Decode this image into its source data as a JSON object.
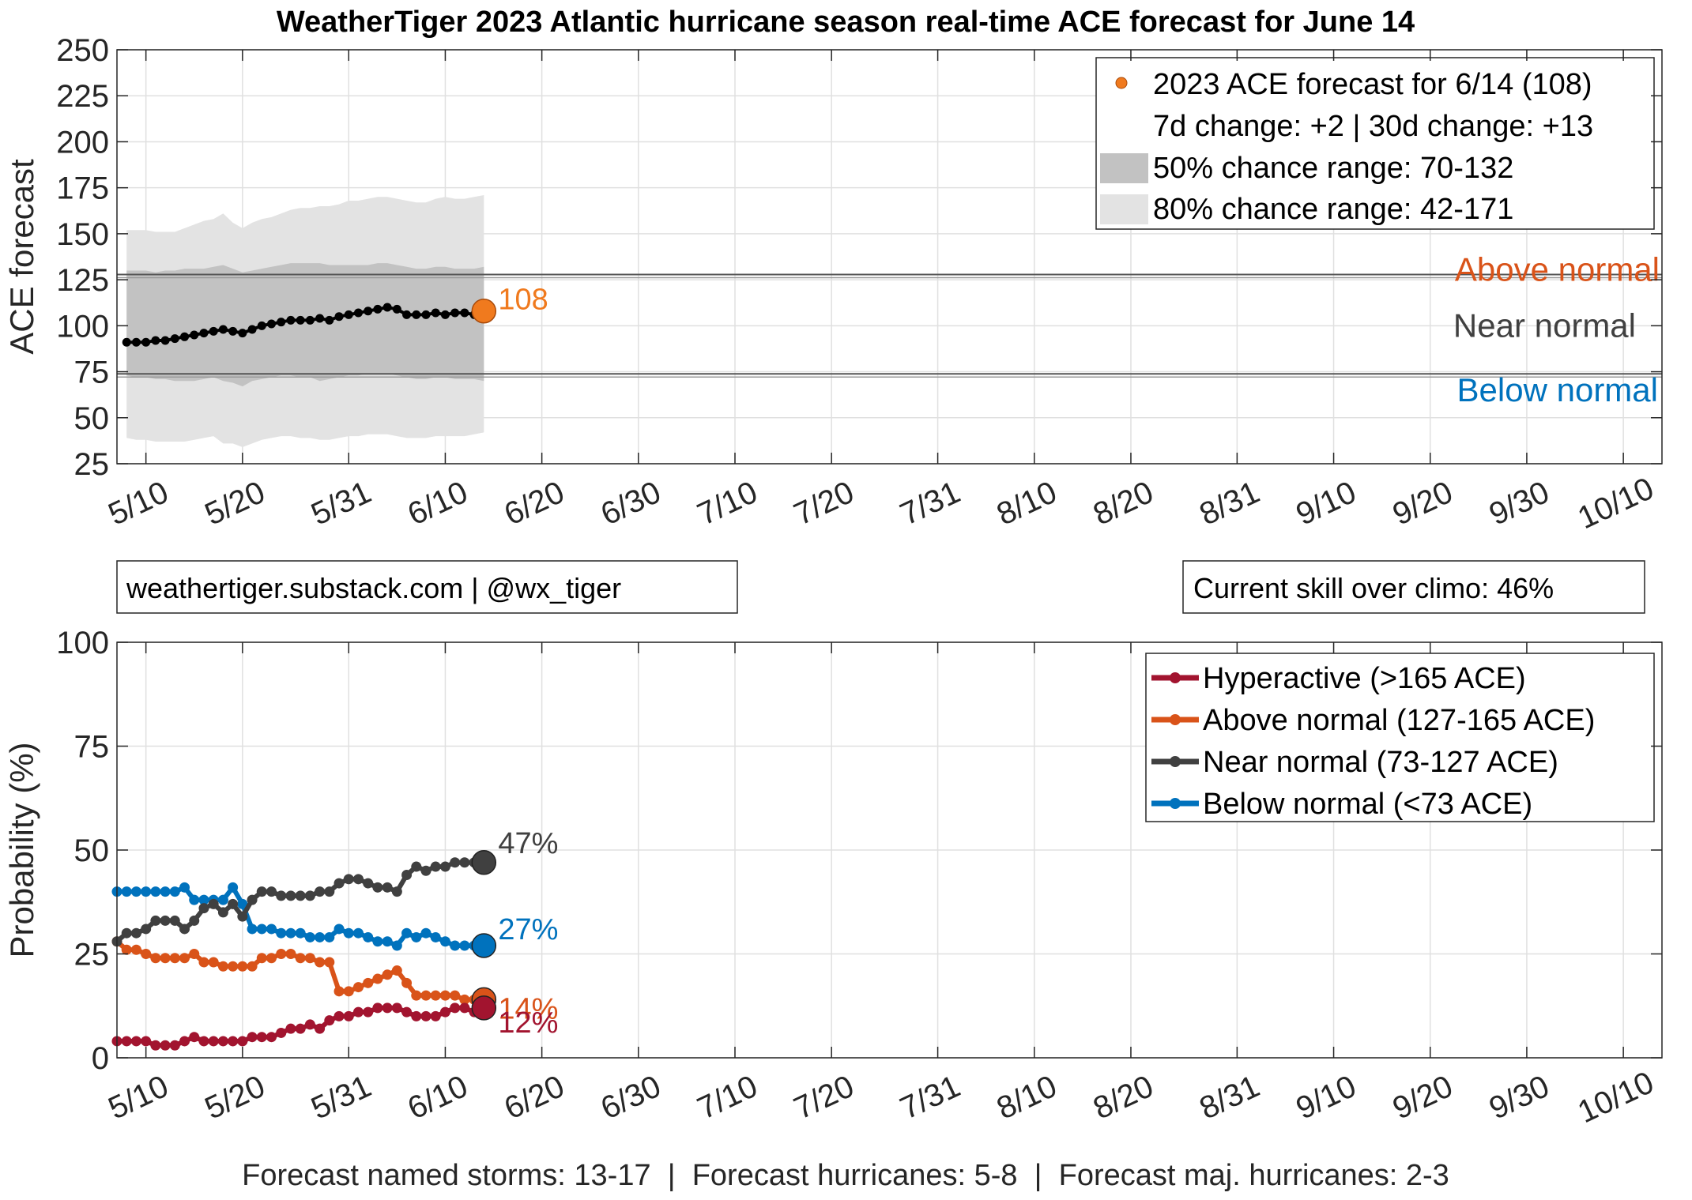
{
  "figure": {
    "title": "WeatherTiger 2023 Atlantic hurricane season real-time ACE forecast for June 14",
    "credit": "weathertiger.substack.com | @wx_tiger",
    "skill": "Current skill over climo: 46%",
    "footer": "Forecast named storms: 13-17  |  Forecast hurricanes: 5-8  |  Forecast maj. hurricanes: 2-3"
  },
  "colors": {
    "forecast_dot": "#f07a1e",
    "band50": "#c2c2c2",
    "band80": "#e3e3e3",
    "above": "#d95319",
    "near": "#404040",
    "below": "#0072bd",
    "hyper": "#a2142f"
  },
  "chart_data": [
    {
      "type": "line",
      "title": "WeatherTiger 2023 Atlantic hurricane season real-time ACE forecast for June 14",
      "ylabel": "ACE forecast",
      "xlabel": "",
      "ylim": [
        25,
        250
      ],
      "xlim": [
        "2023-05-07",
        "2023-10-14"
      ],
      "yticks": [
        25,
        50,
        75,
        100,
        125,
        150,
        175,
        200,
        225,
        250
      ],
      "xtick_dates": [
        "2023-05-10",
        "2023-05-20",
        "2023-05-31",
        "2023-06-10",
        "2023-06-20",
        "2023-06-30",
        "2023-07-10",
        "2023-07-20",
        "2023-07-31",
        "2023-08-10",
        "2023-08-20",
        "2023-08-31",
        "2023-09-10",
        "2023-09-20",
        "2023-09-30",
        "2023-10-10"
      ],
      "xtick_labels": [
        "5/10",
        "5/20",
        "5/31",
        "6/10",
        "6/20",
        "6/30",
        "7/10",
        "7/20",
        "7/31",
        "8/10",
        "8/20",
        "8/31",
        "9/10",
        "9/20",
        "9/30",
        "10/10"
      ],
      "grid": true,
      "legend_position": "top-right",
      "dates": [
        "2023-05-08",
        "2023-05-09",
        "2023-05-10",
        "2023-05-11",
        "2023-05-12",
        "2023-05-13",
        "2023-05-14",
        "2023-05-15",
        "2023-05-16",
        "2023-05-17",
        "2023-05-18",
        "2023-05-19",
        "2023-05-20",
        "2023-05-21",
        "2023-05-22",
        "2023-05-23",
        "2023-05-24",
        "2023-05-25",
        "2023-05-26",
        "2023-05-27",
        "2023-05-28",
        "2023-05-29",
        "2023-05-30",
        "2023-05-31",
        "2023-06-01",
        "2023-06-02",
        "2023-06-03",
        "2023-06-04",
        "2023-06-05",
        "2023-06-06",
        "2023-06-07",
        "2023-06-08",
        "2023-06-09",
        "2023-06-10",
        "2023-06-11",
        "2023-06-12",
        "2023-06-13",
        "2023-06-14"
      ],
      "forecast": [
        91,
        91,
        91,
        92,
        92,
        93,
        94,
        95,
        96,
        97,
        98,
        97,
        96,
        98,
        100,
        101,
        102,
        103,
        103,
        103,
        104,
        103,
        105,
        106,
        107,
        108,
        109,
        110,
        109,
        106,
        106,
        106,
        107,
        106,
        107,
        107,
        106,
        108
      ],
      "range50_low": [
        73,
        72,
        72,
        71,
        71,
        70,
        70,
        70,
        71,
        72,
        70,
        69,
        67,
        70,
        71,
        72,
        73,
        73,
        72,
        72,
        70,
        71,
        72,
        73,
        73,
        74,
        74,
        74,
        73,
        72,
        71,
        71,
        72,
        72,
        71,
        71,
        71,
        70
      ],
      "range50_high": [
        130,
        130,
        130,
        129,
        130,
        130,
        131,
        131,
        131,
        132,
        133,
        131,
        129,
        130,
        131,
        132,
        133,
        134,
        134,
        134,
        134,
        133,
        133,
        133,
        133,
        133,
        134,
        134,
        133,
        132,
        131,
        131,
        132,
        132,
        131,
        131,
        131,
        132
      ],
      "range80_low": [
        39,
        38,
        38,
        37,
        37,
        37,
        37,
        38,
        39,
        40,
        36,
        36,
        34,
        36,
        38,
        39,
        40,
        40,
        39,
        39,
        38,
        38,
        39,
        40,
        40,
        41,
        41,
        41,
        40,
        39,
        39,
        39,
        40,
        40,
        40,
        40,
        41,
        42
      ],
      "range80_high": [
        152,
        152,
        152,
        151,
        151,
        151,
        153,
        155,
        157,
        158,
        161,
        156,
        153,
        156,
        158,
        159,
        161,
        163,
        164,
        164,
        165,
        165,
        166,
        168,
        168,
        169,
        170,
        170,
        169,
        168,
        167,
        167,
        169,
        170,
        169,
        169,
        170,
        171
      ],
      "current": {
        "date": "2023-06-14",
        "value": 108,
        "label": "108"
      },
      "thresholds": {
        "above": 127,
        "below": 73
      },
      "region_labels": {
        "above": "Above normal",
        "near": "Near normal",
        "below": "Below normal"
      },
      "legend": {
        "forecast": "2023 ACE forecast for 6/14 (108)",
        "change": "7d change: +2 | 30d change: +13",
        "range50": "50% chance range: 70-132",
        "range80": "80% chance range: 42-171"
      }
    },
    {
      "type": "line",
      "ylabel": "Probability (%)",
      "xlabel": "",
      "ylim": [
        0,
        100
      ],
      "xlim": [
        "2023-05-07",
        "2023-10-14"
      ],
      "yticks": [
        0,
        25,
        50,
        75,
        100
      ],
      "xtick_dates": [
        "2023-05-10",
        "2023-05-20",
        "2023-05-31",
        "2023-06-10",
        "2023-06-20",
        "2023-06-30",
        "2023-07-10",
        "2023-07-20",
        "2023-07-31",
        "2023-08-10",
        "2023-08-20",
        "2023-08-31",
        "2023-09-10",
        "2023-09-20",
        "2023-09-30",
        "2023-10-10"
      ],
      "xtick_labels": [
        "5/10",
        "5/20",
        "5/31",
        "6/10",
        "6/20",
        "6/30",
        "7/10",
        "7/20",
        "7/31",
        "8/10",
        "8/20",
        "8/31",
        "9/10",
        "9/20",
        "9/30",
        "10/10"
      ],
      "grid": true,
      "legend_position": "top-right",
      "dates": [
        "2023-05-07",
        "2023-05-08",
        "2023-05-09",
        "2023-05-10",
        "2023-05-11",
        "2023-05-12",
        "2023-05-13",
        "2023-05-14",
        "2023-05-15",
        "2023-05-16",
        "2023-05-17",
        "2023-05-18",
        "2023-05-19",
        "2023-05-20",
        "2023-05-21",
        "2023-05-22",
        "2023-05-23",
        "2023-05-24",
        "2023-05-25",
        "2023-05-26",
        "2023-05-27",
        "2023-05-28",
        "2023-05-29",
        "2023-05-30",
        "2023-05-31",
        "2023-06-01",
        "2023-06-02",
        "2023-06-03",
        "2023-06-04",
        "2023-06-05",
        "2023-06-06",
        "2023-06-07",
        "2023-06-08",
        "2023-06-09",
        "2023-06-10",
        "2023-06-11",
        "2023-06-12",
        "2023-06-13",
        "2023-06-14"
      ],
      "series": [
        {
          "name": "Hyperactive (>165 ACE)",
          "key": "hyper",
          "end_label": "12%",
          "values": [
            4,
            4,
            4,
            4,
            3,
            3,
            3,
            4,
            5,
            4,
            4,
            4,
            4,
            4,
            5,
            5,
            5,
            6,
            7,
            7,
            8,
            7,
            9,
            10,
            10,
            11,
            11,
            12,
            12,
            12,
            11,
            10,
            10,
            10,
            11,
            12,
            12,
            11,
            12
          ]
        },
        {
          "name": "Above normal (127-165 ACE)",
          "key": "above",
          "end_label": "14%",
          "values": [
            28,
            26,
            26,
            25,
            24,
            24,
            24,
            24,
            25,
            23,
            23,
            22,
            22,
            22,
            22,
            24,
            24,
            25,
            25,
            24,
            24,
            23,
            23,
            16,
            16,
            17,
            18,
            19,
            20,
            21,
            18,
            15,
            15,
            15,
            15,
            15,
            14,
            14,
            14
          ]
        },
        {
          "name": "Near normal (73-127 ACE)",
          "key": "near",
          "end_label": "47%",
          "values": [
            28,
            30,
            30,
            31,
            33,
            33,
            33,
            31,
            33,
            36,
            37,
            35,
            37,
            34,
            38,
            40,
            40,
            39,
            39,
            39,
            39,
            40,
            40,
            42,
            43,
            43,
            42,
            41,
            41,
            40,
            44,
            46,
            45,
            46,
            46,
            47,
            47,
            47,
            47
          ]
        },
        {
          "name": "Below normal (<73 ACE)",
          "key": "below",
          "end_label": "27%",
          "values": [
            40,
            40,
            40,
            40,
            40,
            40,
            40,
            41,
            38,
            38,
            38,
            38,
            41,
            37,
            31,
            31,
            31,
            30,
            30,
            30,
            29,
            29,
            29,
            31,
            30,
            30,
            29,
            28,
            28,
            27,
            30,
            29,
            30,
            29,
            28,
            27,
            27,
            27,
            27
          ]
        }
      ]
    }
  ]
}
